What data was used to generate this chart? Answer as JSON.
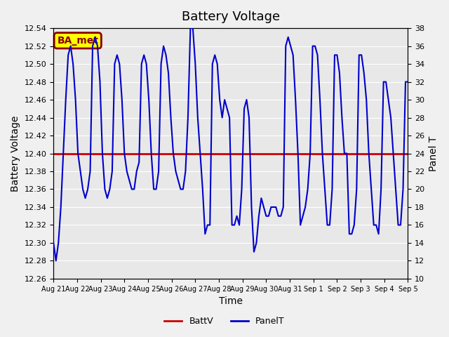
{
  "title": "Battery Voltage",
  "xlabel": "Time",
  "ylabel_left": "Battery Voltage",
  "ylabel_right": "Panel T",
  "ylim_left": [
    12.26,
    12.54
  ],
  "ylim_right": [
    10,
    38
  ],
  "background_color": "#e8e8e8",
  "fig_background": "#f0f0f0",
  "battv_value": 12.4,
  "battv_color": "#cc0000",
  "panel_color": "#0000cc",
  "annotation_text": "BA_met",
  "annotation_bg": "#ffff00",
  "annotation_border": "#8b0000",
  "x_tick_labels": [
    "Aug 21",
    "Aug 22",
    "Aug 23",
    "Aug 24",
    "Aug 25",
    "Aug 26",
    "Aug 27",
    "Aug 28",
    "Aug 29",
    "Aug 30",
    "Aug 31",
    "Sep 1",
    "Sep 2",
    "Sep 3",
    "Sep 4",
    "Sep 5"
  ],
  "panel_t_data": {
    "x": [
      0,
      0.1,
      0.2,
      0.3,
      0.4,
      0.5,
      0.6,
      0.7,
      0.8,
      0.9,
      1.0,
      1.1,
      1.2,
      1.3,
      1.4,
      1.5,
      1.6,
      1.7,
      1.8,
      1.9,
      2.0,
      2.1,
      2.2,
      2.3,
      2.4,
      2.5,
      2.6,
      2.7,
      2.8,
      2.9,
      3.0,
      3.1,
      3.2,
      3.3,
      3.4,
      3.5,
      3.6,
      3.7,
      3.8,
      3.9,
      4.0,
      4.1,
      4.2,
      4.3,
      4.4,
      4.5,
      4.6,
      4.7,
      4.8,
      4.9,
      5.0,
      5.1,
      5.2,
      5.3,
      5.4,
      5.5,
      5.6,
      5.7,
      5.8,
      5.9,
      6.0,
      6.1,
      6.2,
      6.3,
      6.4,
      6.5,
      6.6,
      6.7,
      6.8,
      6.9,
      7.0,
      7.1,
      7.2,
      7.3,
      7.4,
      7.5,
      7.6,
      7.7,
      7.8,
      7.9,
      8.0,
      8.1,
      8.2,
      8.3,
      8.4,
      8.5,
      8.6,
      8.7,
      8.8,
      8.9,
      9.0,
      9.1,
      9.2,
      9.3,
      9.4,
      9.5,
      9.6,
      9.7,
      9.8,
      9.9,
      10.0,
      10.1,
      10.2,
      10.3,
      10.4,
      10.5,
      10.6,
      10.7,
      10.8,
      10.9,
      11.0,
      11.1,
      11.2,
      11.3,
      11.4,
      11.5,
      11.6,
      11.7,
      11.8,
      11.9,
      12.0,
      12.1,
      12.2,
      12.3,
      12.4,
      12.5,
      12.6,
      12.7,
      12.8,
      12.9,
      13.0,
      13.1,
      13.2,
      13.3,
      13.4,
      13.5,
      13.6,
      13.7,
      13.8,
      13.9,
      14.0,
      14.1,
      14.2,
      14.3,
      14.4,
      14.5
    ],
    "y": [
      14,
      12,
      14,
      18,
      24,
      30,
      35,
      36,
      34,
      30,
      24,
      22,
      20,
      19,
      20,
      22,
      36,
      37,
      36,
      32,
      24,
      20,
      19,
      20,
      22,
      34,
      35,
      34,
      30,
      24,
      22,
      21,
      20,
      20,
      22,
      23,
      34,
      35,
      34,
      30,
      24,
      20,
      20,
      22,
      34,
      36,
      35,
      33,
      28,
      24,
      22,
      21,
      20,
      20,
      22,
      28,
      38,
      38,
      34,
      28,
      24,
      20,
      15,
      16,
      16,
      34,
      35,
      34,
      30,
      28,
      30,
      29,
      28,
      16,
      16,
      17,
      16,
      20,
      29,
      30,
      28,
      18,
      13,
      14,
      17,
      19,
      18,
      17,
      17,
      18,
      18,
      18,
      17,
      17,
      18,
      36,
      37,
      36,
      35,
      30,
      24,
      16,
      17,
      18,
      20,
      24,
      36,
      36,
      35,
      30,
      24,
      20,
      16,
      16,
      20,
      35,
      35,
      33,
      28,
      24,
      24,
      15,
      15,
      16,
      20,
      35,
      35,
      33,
      30,
      24,
      20,
      16,
      16,
      15,
      20,
      32,
      32,
      30,
      28,
      24,
      20,
      16,
      16,
      20,
      32,
      32
    ]
  }
}
